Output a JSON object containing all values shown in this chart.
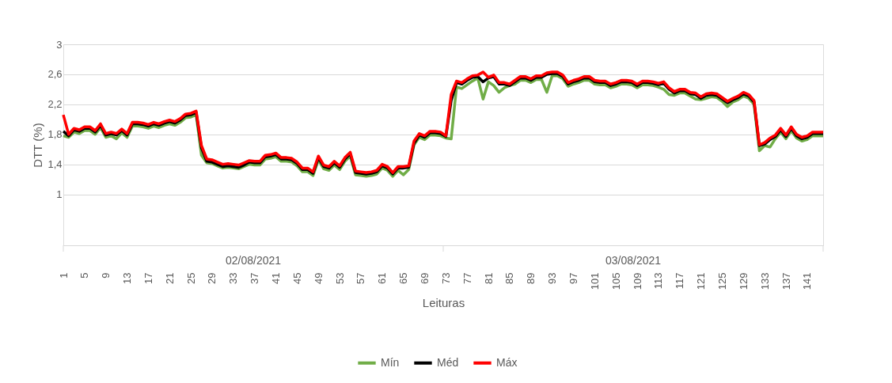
{
  "chart_data": {
    "type": "line",
    "xlabel": "Leituras",
    "ylabel": "DTT (%)",
    "annotations": [
      "02/08/2021",
      "03/08/2021"
    ],
    "categories": [
      "1",
      null,
      null,
      null,
      "5",
      null,
      null,
      null,
      "9",
      null,
      null,
      null,
      "13",
      null,
      null,
      null,
      "17",
      null,
      null,
      null,
      "21",
      null,
      null,
      null,
      "25",
      null,
      null,
      null,
      "29",
      null,
      null,
      null,
      "33",
      null,
      null,
      null,
      "37",
      null,
      null,
      null,
      "41",
      null,
      null,
      null,
      "45",
      null,
      null,
      null,
      "49",
      null,
      null,
      null,
      "53",
      null,
      null,
      null,
      "57",
      null,
      null,
      null,
      "61",
      null,
      null,
      null,
      "65",
      null,
      null,
      null,
      "69",
      null,
      null,
      null,
      "73",
      null,
      null,
      null,
      "77",
      null,
      null,
      null,
      "81",
      null,
      null,
      null,
      "85",
      null,
      null,
      null,
      "89",
      null,
      null,
      null,
      "93",
      null,
      null,
      null,
      "97",
      null,
      null,
      null,
      "101",
      null,
      null,
      null,
      "105",
      null,
      null,
      null,
      "109",
      null,
      null,
      null,
      "113",
      null,
      null,
      null,
      "117",
      null,
      null,
      null,
      "121",
      null,
      null,
      null,
      "125",
      null,
      null,
      null,
      "129",
      null,
      null,
      null,
      "133",
      null,
      null,
      null,
      "137",
      null,
      null,
      null,
      "141",
      null,
      null,
      null
    ],
    "series": [
      {
        "name": "Mín",
        "color": "#70ad47",
        "values": [
          1.78,
          1.76,
          1.83,
          1.81,
          1.85,
          1.85,
          1.8,
          1.89,
          1.76,
          1.78,
          1.74,
          1.82,
          1.76,
          1.91,
          1.91,
          1.9,
          1.88,
          1.91,
          1.89,
          1.92,
          1.94,
          1.92,
          1.96,
          2.02,
          2.03,
          2.06,
          1.52,
          1.42,
          1.41,
          1.38,
          1.35,
          1.36,
          1.35,
          1.34,
          1.37,
          1.4,
          1.39,
          1.39,
          1.47,
          1.48,
          1.5,
          1.44,
          1.44,
          1.43,
          1.38,
          1.3,
          1.3,
          1.25,
          1.46,
          1.34,
          1.32,
          1.39,
          1.33,
          1.44,
          1.51,
          1.26,
          1.25,
          1.24,
          1.25,
          1.27,
          1.35,
          1.32,
          1.24,
          1.32,
          1.26,
          1.33,
          1.66,
          1.76,
          1.73,
          1.79,
          1.79,
          1.78,
          1.75,
          1.74,
          2.43,
          2.41,
          2.46,
          2.51,
          2.55,
          2.27,
          2.5,
          2.45,
          2.36,
          2.42,
          2.45,
          2.47,
          2.52,
          2.52,
          2.49,
          2.53,
          2.53,
          2.36,
          2.58,
          2.58,
          2.54,
          2.44,
          2.47,
          2.49,
          2.52,
          2.52,
          2.47,
          2.46,
          2.46,
          2.42,
          2.44,
          2.47,
          2.47,
          2.46,
          2.42,
          2.46,
          2.46,
          2.45,
          2.43,
          2.4,
          2.33,
          2.32,
          2.35,
          2.35,
          2.31,
          2.27,
          2.26,
          2.28,
          2.3,
          2.29,
          2.24,
          2.17,
          2.23,
          2.26,
          2.31,
          2.28,
          2.2,
          1.58,
          1.65,
          1.63,
          1.74,
          1.83,
          1.74,
          1.85,
          1.75,
          1.71,
          1.73,
          1.78,
          1.78,
          1.78
        ]
      },
      {
        "name": "Méd",
        "color": "#000000",
        "values": [
          1.84,
          1.78,
          1.86,
          1.84,
          1.88,
          1.88,
          1.83,
          1.92,
          1.79,
          1.81,
          1.79,
          1.85,
          1.79,
          1.94,
          1.94,
          1.93,
          1.91,
          1.94,
          1.92,
          1.95,
          1.97,
          1.95,
          1.99,
          2.05,
          2.06,
          2.09,
          1.62,
          1.44,
          1.43,
          1.4,
          1.37,
          1.38,
          1.37,
          1.36,
          1.39,
          1.43,
          1.42,
          1.42,
          1.5,
          1.51,
          1.53,
          1.47,
          1.47,
          1.46,
          1.41,
          1.33,
          1.33,
          1.28,
          1.49,
          1.37,
          1.35,
          1.42,
          1.36,
          1.47,
          1.54,
          1.29,
          1.28,
          1.27,
          1.28,
          1.3,
          1.38,
          1.35,
          1.27,
          1.35,
          1.35,
          1.36,
          1.68,
          1.79,
          1.76,
          1.82,
          1.82,
          1.81,
          1.77,
          2.25,
          2.49,
          2.47,
          2.52,
          2.56,
          2.57,
          2.5,
          2.55,
          2.57,
          2.47,
          2.47,
          2.45,
          2.5,
          2.55,
          2.55,
          2.52,
          2.56,
          2.56,
          2.6,
          2.61,
          2.61,
          2.57,
          2.47,
          2.5,
          2.52,
          2.55,
          2.55,
          2.5,
          2.49,
          2.49,
          2.45,
          2.47,
          2.5,
          2.5,
          2.49,
          2.45,
          2.49,
          2.49,
          2.48,
          2.46,
          2.48,
          2.4,
          2.35,
          2.38,
          2.38,
          2.34,
          2.33,
          2.28,
          2.32,
          2.33,
          2.32,
          2.27,
          2.22,
          2.26,
          2.29,
          2.34,
          2.31,
          2.23,
          1.65,
          1.67,
          1.73,
          1.77,
          1.86,
          1.77,
          1.88,
          1.78,
          1.74,
          1.76,
          1.81,
          1.81,
          1.81
        ]
      },
      {
        "name": "Máx",
        "color": "#ff0000",
        "values": [
          2.06,
          1.8,
          1.88,
          1.86,
          1.9,
          1.9,
          1.85,
          1.94,
          1.81,
          1.83,
          1.81,
          1.87,
          1.81,
          1.96,
          1.96,
          1.95,
          1.93,
          1.96,
          1.94,
          1.97,
          1.99,
          1.97,
          2.01,
          2.07,
          2.08,
          2.11,
          1.65,
          1.47,
          1.46,
          1.43,
          1.4,
          1.41,
          1.4,
          1.39,
          1.42,
          1.45,
          1.44,
          1.44,
          1.52,
          1.53,
          1.55,
          1.49,
          1.49,
          1.48,
          1.43,
          1.35,
          1.35,
          1.3,
          1.51,
          1.39,
          1.37,
          1.44,
          1.38,
          1.49,
          1.56,
          1.31,
          1.3,
          1.29,
          1.3,
          1.32,
          1.4,
          1.37,
          1.29,
          1.37,
          1.37,
          1.38,
          1.71,
          1.81,
          1.78,
          1.84,
          1.84,
          1.83,
          1.78,
          2.33,
          2.51,
          2.49,
          2.54,
          2.58,
          2.59,
          2.63,
          2.56,
          2.59,
          2.49,
          2.49,
          2.47,
          2.52,
          2.57,
          2.57,
          2.54,
          2.58,
          2.58,
          2.62,
          2.63,
          2.63,
          2.59,
          2.49,
          2.52,
          2.54,
          2.57,
          2.57,
          2.52,
          2.51,
          2.51,
          2.47,
          2.49,
          2.52,
          2.52,
          2.51,
          2.47,
          2.51,
          2.51,
          2.5,
          2.48,
          2.5,
          2.42,
          2.37,
          2.4,
          2.4,
          2.36,
          2.35,
          2.3,
          2.34,
          2.35,
          2.34,
          2.29,
          2.24,
          2.28,
          2.31,
          2.36,
          2.33,
          2.25,
          1.66,
          1.69,
          1.75,
          1.79,
          1.88,
          1.79,
          1.9,
          1.8,
          1.76,
          1.78,
          1.83,
          1.83,
          1.83
        ]
      }
    ],
    "ylim": [
      0.32,
      3
    ],
    "yticks": [
      1,
      {
        "value": 1.4,
        "label": "1,4"
      },
      {
        "value": 1.8,
        "label": "1,8"
      },
      {
        "value": 2.2,
        "label": "2,2"
      },
      {
        "value": 2.6,
        "label": "2,6"
      },
      3
    ],
    "grid": "y",
    "legend": "bottom",
    "marker": "none",
    "line_style": "solid"
  }
}
